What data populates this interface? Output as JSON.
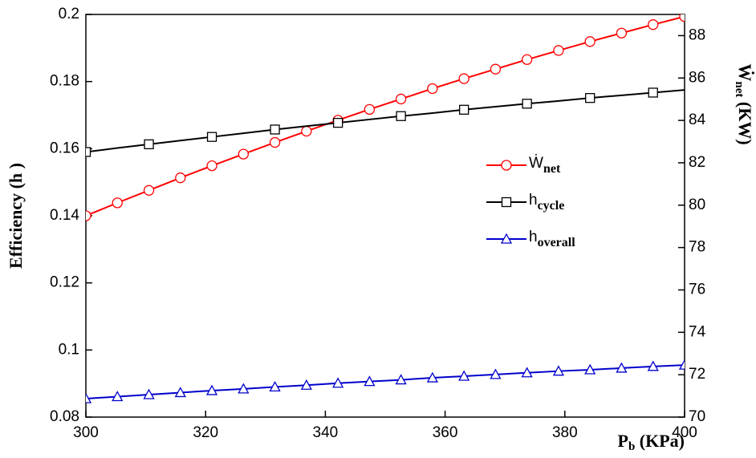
{
  "chart_data": {
    "type": "line",
    "xlabel": [
      "P",
      "b",
      " (KPa)"
    ],
    "ylabel": "Efficiency (h )",
    "y2label": [
      "Ẇ",
      "net",
      " (KW)"
    ],
    "x": [
      300,
      305.26,
      310.53,
      315.79,
      321.05,
      326.32,
      331.58,
      336.84,
      342.11,
      347.37,
      352.63,
      357.89,
      363.16,
      368.42,
      373.68,
      378.95,
      384.21,
      389.47,
      394.74,
      400
    ],
    "xlim": [
      300,
      400
    ],
    "xticks": [
      300,
      320,
      340,
      360,
      380,
      400
    ],
    "ylim": [
      0.08,
      0.2
    ],
    "yticks": [
      0.08,
      0.1,
      0.12,
      0.14,
      0.16,
      0.18,
      0.2
    ],
    "y2lim": [
      70,
      89
    ],
    "y2ticks": [
      70,
      72,
      74,
      76,
      78,
      80,
      82,
      84,
      86,
      88
    ],
    "series": [
      {
        "name": [
          "Ẇ",
          "net"
        ],
        "color": "#ff0000",
        "marker": "circle",
        "marker_every": 1,
        "axis": "y2",
        "values": [
          79.5,
          80.11,
          80.7,
          81.29,
          81.86,
          82.41,
          82.96,
          83.49,
          84.01,
          84.52,
          85.01,
          85.5,
          85.97,
          86.42,
          86.87,
          87.3,
          87.72,
          88.12,
          88.52,
          88.9
        ]
      },
      {
        "name": [
          "h",
          "cycle"
        ],
        "color": "#000000",
        "marker": "square",
        "marker_every": 2,
        "values": [
          0.159,
          0.1602,
          0.1613,
          0.1624,
          0.1635,
          0.1646,
          0.1657,
          0.1667,
          0.1677,
          0.1687,
          0.1697,
          0.1706,
          0.1716,
          0.1725,
          0.1734,
          0.1742,
          0.1751,
          0.1759,
          0.1767,
          0.1775
        ]
      },
      {
        "name": [
          "h",
          "overall"
        ],
        "color": "#0000cc",
        "marker": "triangle",
        "marker_every": 1,
        "values": [
          0.0855,
          0.0861,
          0.0867,
          0.0873,
          0.0879,
          0.0884,
          0.089,
          0.0895,
          0.0901,
          0.0906,
          0.0911,
          0.0917,
          0.0922,
          0.0927,
          0.0932,
          0.0937,
          0.0941,
          0.0946,
          0.0951,
          0.0955
        ]
      }
    ]
  }
}
